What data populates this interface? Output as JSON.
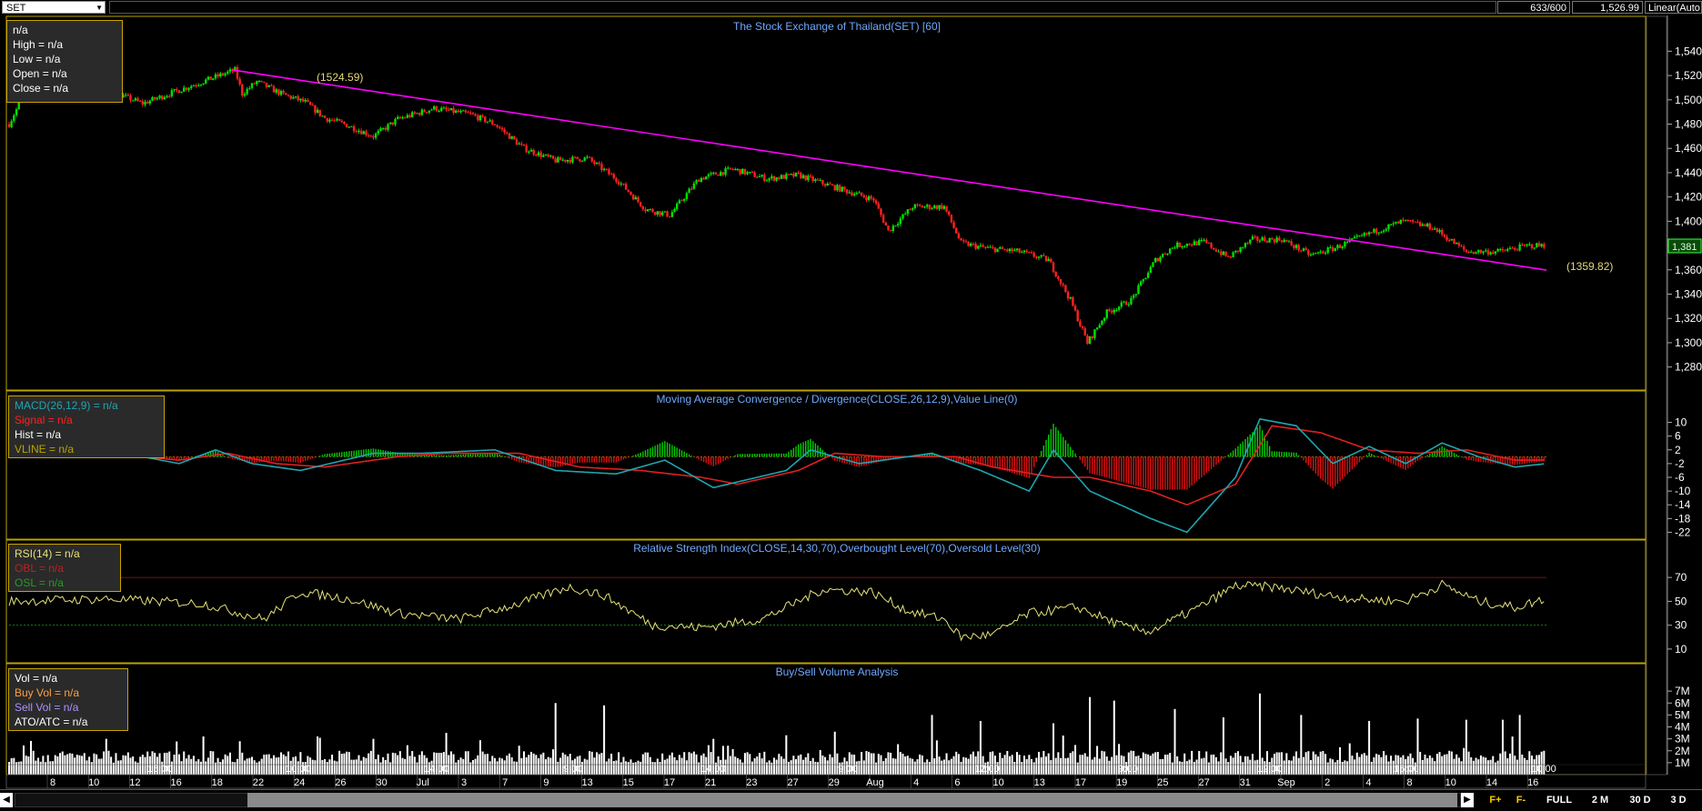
{
  "toolbar": {
    "symbol": "SET",
    "bar_count": "633/600",
    "last_price": "1,526.99",
    "scale_mode": "Linear(Auto"
  },
  "price_panel": {
    "title": "The Stock Exchange of Thailand(SET) [60]",
    "info": [
      "n/a",
      "High  = n/a",
      "Low  = n/a",
      "Open  = n/a",
      "Close  = n/a"
    ],
    "annotation_high": "(1524.59)",
    "annotation_line_end": "(1359.82)",
    "last_value_tag": "1,381",
    "y_ticks": [
      "1,540",
      "1,520",
      "1,500",
      "1,480",
      "1,460",
      "1,440",
      "1,420",
      "1,400",
      "1,380",
      "1,360",
      "1,340",
      "1,320",
      "1,300",
      "1,280"
    ]
  },
  "macd_panel": {
    "title": "Moving Average Convergence / Divergence(CLOSE,26,12,9),Value Line(0)",
    "info": [
      "MACD(26,12,9)   = n/a",
      "Signal  = n/a",
      "Hist  = n/a",
      "VLINE   = n/a"
    ],
    "y_ticks": [
      "10",
      "6",
      "2",
      "-2",
      "-6",
      "-10",
      "-14",
      "-18",
      "-22"
    ]
  },
  "rsi_panel": {
    "title": "Relative Strength Index(CLOSE,14,30,70),Overbought Level(70),Oversold Level(30)",
    "info": [
      "RSI(14)   = n/a",
      "OBL   = n/a",
      "OSL   = n/a"
    ],
    "y_ticks": [
      "70",
      "50",
      "30",
      "10"
    ]
  },
  "volume_panel": {
    "title": "Buy/Sell Volume Analysis",
    "info": [
      "Vol   = n/a",
      "Buy Vol   = n/a",
      "Sell Vol   = n/a",
      "ATO/ATC   = n/a"
    ],
    "y_ticks": [
      "7M",
      "6M",
      "5M",
      "4M",
      "3M",
      "2M",
      "1M"
    ]
  },
  "x_axis": {
    "time_labels": [
      "15:00",
      "10:00",
      "14:00",
      "9:00",
      "14:00",
      "9:00",
      "12:00",
      "9:00",
      "12:00",
      "15:00",
      "10:00"
    ],
    "date_labels": [
      "8",
      "10",
      "12",
      "16",
      "18",
      "22",
      "24",
      "26",
      "30",
      "Jul",
      "3",
      "7",
      "9",
      "13",
      "15",
      "17",
      "21",
      "23",
      "27",
      "29",
      "Aug",
      "4",
      "6",
      "10",
      "13",
      "17",
      "19",
      "25",
      "27",
      "31",
      "Sep",
      "2",
      "4",
      "8",
      "10",
      "14",
      "16"
    ]
  },
  "bottom_buttons": [
    "F+",
    "F-",
    "FULL",
    "2 M",
    "30 D",
    "3 D"
  ],
  "colors": {
    "background": "#000000",
    "up_candle": "#00e000",
    "down_candle": "#ff2020",
    "trendline": "#ff00ff",
    "macd_line": "#1fa5b0",
    "signal_line": "#e02020",
    "rsi_line": "#e6e37a",
    "panel_border": "#b8a400",
    "title_text": "#6fa8ff"
  },
  "chart_data": [
    {
      "type": "candlestick",
      "title": "The Stock Exchange of Thailand(SET) [60]",
      "y_range": [
        1270,
        1550
      ],
      "anchors": [
        [
          0,
          1480
        ],
        [
          8,
          1512
        ],
        [
          20,
          1508
        ],
        [
          35,
          1512
        ],
        [
          55,
          1497
        ],
        [
          70,
          1508
        ],
        [
          93,
          1524.6
        ],
        [
          96,
          1505
        ],
        [
          102,
          1515
        ],
        [
          112,
          1505
        ],
        [
          122,
          1498
        ],
        [
          130,
          1485
        ],
        [
          138,
          1480
        ],
        [
          150,
          1470
        ],
        [
          160,
          1484
        ],
        [
          175,
          1493
        ],
        [
          190,
          1488
        ],
        [
          200,
          1480
        ],
        [
          212,
          1460
        ],
        [
          225,
          1450
        ],
        [
          238,
          1452
        ],
        [
          250,
          1435
        ],
        [
          262,
          1410
        ],
        [
          272,
          1405
        ],
        [
          284,
          1435
        ],
        [
          298,
          1443
        ],
        [
          312,
          1435
        ],
        [
          325,
          1438
        ],
        [
          340,
          1428
        ],
        [
          356,
          1418
        ],
        [
          362,
          1392
        ],
        [
          372,
          1412
        ],
        [
          385,
          1412
        ],
        [
          392,
          1382
        ],
        [
          402,
          1378
        ],
        [
          416,
          1375
        ],
        [
          428,
          1368
        ],
        [
          437,
          1335
        ],
        [
          444,
          1300
        ],
        [
          452,
          1325
        ],
        [
          462,
          1335
        ],
        [
          472,
          1368
        ],
        [
          480,
          1380
        ],
        [
          492,
          1383
        ],
        [
          502,
          1370
        ],
        [
          512,
          1385
        ],
        [
          524,
          1385
        ],
        [
          536,
          1372
        ],
        [
          546,
          1378
        ],
        [
          560,
          1390
        ],
        [
          574,
          1400
        ],
        [
          586,
          1395
        ],
        [
          600,
          1375
        ],
        [
          613,
          1375
        ],
        [
          626,
          1380
        ]
      ],
      "trendline": {
        "from": [
          92,
          1524.59
        ],
        "to": [
          633,
          1359.82
        ]
      }
    },
    {
      "type": "line",
      "title": "Moving Average Convergence / Divergence(CLOSE,26,12,9),Value Line(0)",
      "y_range": [
        -24,
        12
      ],
      "series": [
        {
          "name": "MACD(26,12,9)",
          "anchors": [
            [
              0,
              0
            ],
            [
              40,
              2
            ],
            [
              70,
              -2
            ],
            [
              85,
              2
            ],
            [
              100,
              -2
            ],
            [
              120,
              -4
            ],
            [
              150,
              1
            ],
            [
              170,
              1
            ],
            [
              200,
              2
            ],
            [
              225,
              -4
            ],
            [
              250,
              -5
            ],
            [
              270,
              -1
            ],
            [
              290,
              -9
            ],
            [
              320,
              -4
            ],
            [
              330,
              2
            ],
            [
              350,
              -2
            ],
            [
              380,
              1
            ],
            [
              400,
              -4
            ],
            [
              420,
              -10
            ],
            [
              430,
              2
            ],
            [
              445,
              -10
            ],
            [
              470,
              -18
            ],
            [
              485,
              -22
            ],
            [
              505,
              -6
            ],
            [
              515,
              11
            ],
            [
              530,
              9
            ],
            [
              545,
              -2
            ],
            [
              560,
              3
            ],
            [
              575,
              -2
            ],
            [
              590,
              4
            ],
            [
              605,
              0
            ],
            [
              620,
              -3
            ],
            [
              633,
              -2
            ]
          ]
        },
        {
          "name": "Signal",
          "anchors": [
            [
              0,
              0
            ],
            [
              40,
              1
            ],
            [
              70,
              -1
            ],
            [
              90,
              1
            ],
            [
              110,
              -2
            ],
            [
              130,
              -3
            ],
            [
              160,
              0
            ],
            [
              180,
              1
            ],
            [
              210,
              1
            ],
            [
              235,
              -3
            ],
            [
              260,
              -4
            ],
            [
              285,
              -6
            ],
            [
              300,
              -8
            ],
            [
              325,
              -4
            ],
            [
              340,
              1
            ],
            [
              360,
              0
            ],
            [
              390,
              0
            ],
            [
              405,
              -3
            ],
            [
              430,
              -6
            ],
            [
              445,
              -6
            ],
            [
              470,
              -10
            ],
            [
              485,
              -14
            ],
            [
              505,
              -8
            ],
            [
              520,
              9
            ],
            [
              540,
              7
            ],
            [
              560,
              2
            ],
            [
              580,
              1
            ],
            [
              600,
              2
            ],
            [
              620,
              -1
            ],
            [
              633,
              -1
            ]
          ]
        }
      ],
      "value_line": 0
    },
    {
      "type": "line",
      "title": "Relative Strength Index(CLOSE,14,30,70),Overbought Level(70),Oversold Level(30)",
      "y_range": [
        0,
        80
      ],
      "series": [
        {
          "name": "RSI(14)",
          "anchors": [
            [
              0,
              50
            ],
            [
              40,
              52
            ],
            [
              80,
              48
            ],
            [
              105,
              35
            ],
            [
              120,
              58
            ],
            [
              140,
              52
            ],
            [
              160,
              40
            ],
            [
              185,
              35
            ],
            [
              210,
              48
            ],
            [
              230,
              62
            ],
            [
              245,
              55
            ],
            [
              265,
              30
            ],
            [
              285,
              28
            ],
            [
              310,
              35
            ],
            [
              335,
              60
            ],
            [
              355,
              58
            ],
            [
              370,
              42
            ],
            [
              385,
              35
            ],
            [
              392,
              20
            ],
            [
              405,
              22
            ],
            [
              420,
              40
            ],
            [
              440,
              45
            ],
            [
              460,
              28
            ],
            [
              470,
              25
            ],
            [
              490,
              45
            ],
            [
              505,
              63
            ],
            [
              520,
              62
            ],
            [
              540,
              56
            ],
            [
              555,
              52
            ],
            [
              575,
              50
            ],
            [
              590,
              64
            ],
            [
              605,
              50
            ],
            [
              620,
              45
            ],
            [
              633,
              52
            ]
          ]
        }
      ],
      "levels": {
        "OBL": 70,
        "OSL": 30
      }
    },
    {
      "type": "bar",
      "title": "Buy/Sell Volume Analysis",
      "y_range": [
        0,
        8000000
      ],
      "spikes": [
        [
          40,
          3000000
        ],
        [
          80,
          3200000
        ],
        [
          95,
          2800000
        ],
        [
          150,
          3000000
        ],
        [
          180,
          3500000
        ],
        [
          225,
          6000000
        ],
        [
          245,
          5800000
        ],
        [
          290,
          3000000
        ],
        [
          320,
          3300000
        ],
        [
          340,
          3600000
        ],
        [
          380,
          5000000
        ],
        [
          400,
          4500000
        ],
        [
          430,
          4300000
        ],
        [
          445,
          6500000
        ],
        [
          455,
          6200000
        ],
        [
          480,
          5500000
        ],
        [
          500,
          4800000
        ],
        [
          515,
          6800000
        ],
        [
          532,
          5000000
        ],
        [
          560,
          4500000
        ],
        [
          580,
          4700000
        ],
        [
          600,
          4600000
        ],
        [
          615,
          4600000
        ],
        [
          622,
          5000000
        ]
      ],
      "base_volume": [
        1000000,
        2000000
      ]
    }
  ]
}
